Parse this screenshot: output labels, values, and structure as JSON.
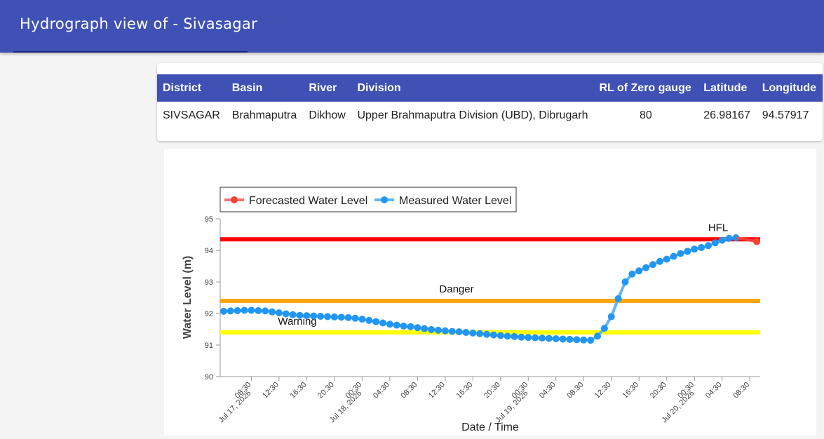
{
  "header": {
    "title": "Hydrograph view of - Sivasagar"
  },
  "station_table": {
    "headers": [
      "District",
      "Basin",
      "River",
      "Division",
      "RL of Zero gauge",
      "Latitude",
      "Longitude"
    ],
    "row": [
      "SIVSAGAR",
      "Brahmaputra",
      "Dikhow",
      "Upper Brahmaputra Division (UBD), Dibrugarh",
      "80",
      "26.98167",
      "94.57917"
    ]
  },
  "chart_data": {
    "type": "line",
    "ylabel": "Water Level (m)",
    "xlabel": "Date / Time",
    "ylim": [
      90,
      95
    ],
    "yticks": [
      90,
      91,
      92,
      93,
      94,
      95
    ],
    "xlim": [
      "2026-07-17T04:00",
      "2026-07-20T10:00"
    ],
    "xtick_labels": [
      "08:30",
      "12:30",
      "16:30",
      "20:30",
      "00:30",
      "04:30",
      "08:30",
      "12:30",
      "16:30",
      "20:30",
      "00:30",
      "04:30",
      "08:30",
      "12:30",
      "16:30",
      "20:30",
      "00:30",
      "04:30",
      "08:30"
    ],
    "date_labels": [
      "Jul 17, 2026",
      "Jul 18, 2026",
      "Jul 19, 2026",
      "Jul 20, 2026"
    ],
    "legend": {
      "position": "top-left",
      "entries": [
        "Forecasted Water Level",
        "Measured Water Level"
      ]
    },
    "reference_lines": [
      {
        "label": "HFL",
        "value": 94.35,
        "color": "#ff0000"
      },
      {
        "label": "Danger",
        "value": 92.4,
        "color": "#ffa500"
      },
      {
        "label": "Warning",
        "value": 91.4,
        "color": "#ffff00"
      }
    ],
    "colors": {
      "measured": "#2196f3",
      "forecast": "#f44336"
    },
    "series": [
      {
        "name": "Measured Water Level",
        "start": "2026-07-17T04:30",
        "interval_hours": 1,
        "values": [
          92.07,
          92.08,
          92.09,
          92.1,
          92.1,
          92.09,
          92.08,
          92.05,
          92.02,
          91.99,
          91.96,
          91.94,
          91.93,
          91.92,
          91.91,
          91.9,
          91.89,
          91.88,
          91.87,
          91.85,
          91.82,
          91.78,
          91.74,
          91.7,
          91.66,
          91.63,
          91.6,
          91.58,
          91.55,
          91.52,
          91.49,
          91.47,
          91.45,
          91.43,
          91.42,
          91.4,
          91.38,
          91.36,
          91.34,
          91.32,
          91.3,
          91.28,
          91.27,
          91.25,
          91.24,
          91.23,
          91.22,
          91.21,
          91.2,
          91.19,
          91.18,
          91.17,
          91.16,
          91.15,
          91.28,
          91.53,
          91.9,
          92.47,
          93.0,
          93.25,
          93.35,
          93.45,
          93.55,
          93.65,
          93.72,
          93.81,
          93.9,
          93.97,
          94.04,
          94.09,
          94.15,
          94.24,
          94.32,
          94.38,
          94.4
        ]
      },
      {
        "name": "Forecasted Water Level",
        "start": "2026-07-20T06:30",
        "interval_hours": 3,
        "values": [
          94.4,
          94.28
        ]
      }
    ]
  }
}
